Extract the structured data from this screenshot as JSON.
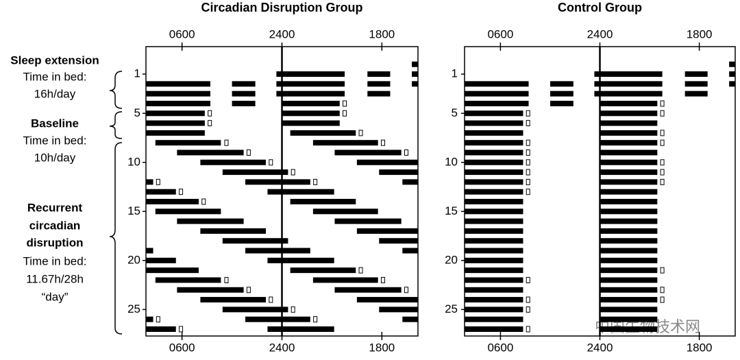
{
  "chart_data": [
    {
      "type": "actogram",
      "title": "Circadian Disruption Group",
      "xlim": [
        -0.5,
        48.5
      ],
      "xticks": [
        {
          "value": 6,
          "label": "0600"
        },
        {
          "value": 24,
          "label": "2400"
        },
        {
          "value": 42,
          "label": "1800"
        }
      ],
      "ylim": [
        -1.8,
        27.7
      ],
      "yticks": [
        1,
        5,
        10,
        15,
        20,
        25
      ],
      "annotations": [
        "Sleep extension",
        "Time in bed:",
        "16h/day",
        "Baseline",
        "Time in bed:",
        "10h/day",
        "Recurrent",
        "circadian",
        "disruption",
        "Time in bed:",
        "11.67h/28h",
        "“day”"
      ],
      "rows": [
        {
          "day": 0,
          "sleep": [
            [
              47.4,
              48.5
            ]
          ],
          "markers": []
        },
        {
          "day": 1,
          "sleep": [
            [
              23,
              35.3
            ],
            [
              39.4,
              43.5
            ],
            [
              47.4,
              48.5
            ]
          ],
          "markers": []
        },
        {
          "day": 2,
          "sleep": [
            [
              -0.5,
              11.1
            ],
            [
              15,
              19.2
            ],
            [
              23,
              35.3
            ],
            [
              39.4,
              43.5
            ],
            [
              47.4,
              48.5
            ]
          ],
          "markers": []
        },
        {
          "day": 3,
          "sleep": [
            [
              -0.5,
              11.1
            ],
            [
              15,
              19.2
            ],
            [
              23,
              35.3
            ],
            [
              39.4,
              43.5
            ]
          ],
          "markers": []
        },
        {
          "day": 4,
          "sleep": [
            [
              -0.5,
              11.1
            ],
            [
              15,
              19.2
            ],
            [
              24,
              34.4
            ]
          ],
          "markers": [
            35.3
          ]
        },
        {
          "day": 5,
          "sleep": [
            [
              -0.5,
              10.1
            ],
            [
              24,
              34.4
            ]
          ],
          "markers": [
            11.0,
            35.3
          ]
        },
        {
          "day": 6,
          "sleep": [
            [
              -0.5,
              10.1
            ],
            [
              24,
              34.4
            ]
          ],
          "markers": [
            11.0
          ]
        },
        {
          "day": 7,
          "sleep": [
            [
              -0.5,
              10.1
            ],
            [
              25.5,
              37.3
            ]
          ],
          "markers": [
            38.2
          ]
        },
        {
          "day": 8,
          "sleep": [
            [
              1.2,
              13.0
            ],
            [
              29.6,
              41.3
            ]
          ],
          "markers": [
            14.0,
            42.2
          ]
        },
        {
          "day": 9,
          "sleep": [
            [
              5.1,
              17.1
            ],
            [
              33.5,
              45.5
            ]
          ],
          "markers": [
            18.0,
            46.4
          ]
        },
        {
          "day": 10,
          "sleep": [
            [
              9.3,
              21.1
            ],
            [
              37.5,
              48.5
            ]
          ],
          "markers": [
            22.0
          ]
        },
        {
          "day": 11,
          "sleep": [
            [
              13.3,
              25.1
            ],
            [
              41.5,
              48.5
            ]
          ],
          "markers": [
            26.0
          ]
        },
        {
          "day": 12,
          "sleep": [
            [
              -0.5,
              0.8
            ],
            [
              17.4,
              29.1
            ],
            [
              45.7,
              48.5
            ]
          ],
          "markers": [
            1.7,
            30.0
          ]
        },
        {
          "day": 13,
          "sleep": [
            [
              -0.5,
              4.9
            ],
            [
              21.4,
              33.4
            ]
          ],
          "markers": [
            5.8
          ]
        },
        {
          "day": 14,
          "sleep": [
            [
              -0.5,
              9.0
            ],
            [
              25.5,
              37.3
            ]
          ],
          "markers": [
            9.9
          ]
        },
        {
          "day": 15,
          "sleep": [
            [
              1.2,
              13.0
            ],
            [
              29.6,
              41.3
            ]
          ],
          "markers": []
        },
        {
          "day": 16,
          "sleep": [
            [
              5.1,
              17.1
            ],
            [
              33.5,
              45.5
            ]
          ],
          "markers": []
        },
        {
          "day": 17,
          "sleep": [
            [
              9.3,
              21.1
            ],
            [
              37.5,
              48.5
            ]
          ],
          "markers": []
        },
        {
          "day": 18,
          "sleep": [
            [
              13.3,
              25.1
            ],
            [
              41.5,
              48.5
            ]
          ],
          "markers": []
        },
        {
          "day": 19,
          "sleep": [
            [
              -0.5,
              0.8
            ],
            [
              17.4,
              29.1
            ],
            [
              45.7,
              48.5
            ]
          ],
          "markers": []
        },
        {
          "day": 20,
          "sleep": [
            [
              -0.5,
              4.9
            ],
            [
              21.4,
              33.4
            ]
          ],
          "markers": []
        },
        {
          "day": 21,
          "sleep": [
            [
              -0.5,
              9.0
            ],
            [
              25.5,
              37.3
            ]
          ],
          "markers": [
            38.2
          ]
        },
        {
          "day": 22,
          "sleep": [
            [
              1.2,
              13.0
            ],
            [
              29.6,
              41.3
            ]
          ],
          "markers": [
            14.0,
            42.2
          ]
        },
        {
          "day": 23,
          "sleep": [
            [
              5.1,
              17.1
            ],
            [
              33.5,
              45.5
            ]
          ],
          "markers": [
            18.0,
            46.4
          ]
        },
        {
          "day": 24,
          "sleep": [
            [
              9.3,
              21.1
            ],
            [
              37.5,
              48.5
            ]
          ],
          "markers": [
            22.0
          ]
        },
        {
          "day": 25,
          "sleep": [
            [
              13.3,
              25.1
            ],
            [
              41.5,
              48.5
            ]
          ],
          "markers": [
            26.0
          ]
        },
        {
          "day": 26,
          "sleep": [
            [
              -0.5,
              0.8
            ],
            [
              17.4,
              29.1
            ],
            [
              45.7,
              48.5
            ]
          ],
          "markers": [
            1.7,
            30.0
          ]
        },
        {
          "day": 27,
          "sleep": [
            [
              -0.5,
              4.9
            ],
            [
              21.4,
              33.4
            ]
          ],
          "markers": [
            5.8
          ]
        }
      ]
    },
    {
      "type": "actogram",
      "title": "Control Group",
      "xlim": [
        -0.5,
        48.5
      ],
      "xticks": [
        {
          "value": 6,
          "label": "0600"
        },
        {
          "value": 24,
          "label": "2400"
        },
        {
          "value": 42,
          "label": "1800"
        }
      ],
      "ylim": [
        -1.8,
        27.7
      ],
      "yticks": [
        1,
        5,
        10,
        15,
        20,
        25
      ],
      "watermark": "中国生物技术网",
      "rows": [
        {
          "day": 0,
          "sleep": [
            [
              47.4,
              48.5
            ]
          ],
          "markers": []
        },
        {
          "day": 1,
          "sleep": [
            [
              23,
              35.3
            ],
            [
              39.4,
              43.5
            ],
            [
              47.4,
              48.5
            ]
          ],
          "markers": []
        },
        {
          "day": 2,
          "sleep": [
            [
              -0.5,
              11.1
            ],
            [
              15,
              19.2
            ],
            [
              23,
              35.3
            ],
            [
              39.4,
              43.5
            ],
            [
              47.4,
              48.5
            ]
          ],
          "markers": []
        },
        {
          "day": 3,
          "sleep": [
            [
              -0.5,
              11.1
            ],
            [
              15,
              19.2
            ],
            [
              23,
              35.3
            ],
            [
              39.4,
              43.5
            ]
          ],
          "markers": []
        },
        {
          "day": 4,
          "sleep": [
            [
              -0.5,
              11.1
            ],
            [
              15,
              19.2
            ],
            [
              24,
              34.4
            ]
          ],
          "markers": [
            35.3
          ]
        },
        {
          "day": 5,
          "sleep": [
            [
              -0.5,
              10.1
            ],
            [
              24,
              34.4
            ]
          ],
          "markers": [
            11.0,
            35.3
          ]
        },
        {
          "day": 6,
          "sleep": [
            [
              -0.5,
              10.1
            ],
            [
              24,
              34.4
            ]
          ],
          "markers": [
            11.0
          ]
        },
        {
          "day": 7,
          "sleep": [
            [
              -0.5,
              10.1
            ],
            [
              24,
              34.4
            ]
          ],
          "markers": [
            35.3
          ]
        },
        {
          "day": 8,
          "sleep": [
            [
              -0.5,
              10.1
            ],
            [
              24,
              34.4
            ]
          ],
          "markers": [
            11.0,
            35.3
          ]
        },
        {
          "day": 9,
          "sleep": [
            [
              -0.5,
              10.1
            ],
            [
              24,
              34.4
            ]
          ],
          "markers": [
            11.0
          ]
        },
        {
          "day": 10,
          "sleep": [
            [
              -0.5,
              10.1
            ],
            [
              24,
              34.4
            ]
          ],
          "markers": [
            11.0,
            35.3
          ]
        },
        {
          "day": 11,
          "sleep": [
            [
              -0.5,
              10.1
            ],
            [
              24,
              34.4
            ]
          ],
          "markers": [
            11.0,
            35.3
          ]
        },
        {
          "day": 12,
          "sleep": [
            [
              -0.5,
              10.1
            ],
            [
              24,
              34.4
            ]
          ],
          "markers": [
            11.0,
            35.3
          ]
        },
        {
          "day": 13,
          "sleep": [
            [
              -0.5,
              10.1
            ],
            [
              24,
              34.4
            ]
          ],
          "markers": [
            11.0
          ]
        },
        {
          "day": 14,
          "sleep": [
            [
              -0.5,
              10.1
            ],
            [
              24,
              34.4
            ]
          ],
          "markers": []
        },
        {
          "day": 15,
          "sleep": [
            [
              -0.5,
              10.1
            ],
            [
              24,
              34.4
            ]
          ],
          "markers": []
        },
        {
          "day": 16,
          "sleep": [
            [
              -0.5,
              10.1
            ],
            [
              24,
              34.4
            ]
          ],
          "markers": []
        },
        {
          "day": 17,
          "sleep": [
            [
              -0.5,
              10.1
            ],
            [
              24,
              34.4
            ]
          ],
          "markers": []
        },
        {
          "day": 18,
          "sleep": [
            [
              -0.5,
              10.1
            ],
            [
              24,
              34.4
            ]
          ],
          "markers": []
        },
        {
          "day": 19,
          "sleep": [
            [
              -0.5,
              10.1
            ],
            [
              24,
              34.4
            ]
          ],
          "markers": []
        },
        {
          "day": 20,
          "sleep": [
            [
              -0.5,
              10.1
            ],
            [
              24,
              34.4
            ]
          ],
          "markers": []
        },
        {
          "day": 21,
          "sleep": [
            [
              -0.5,
              10.1
            ],
            [
              24,
              34.4
            ]
          ],
          "markers": [
            35.3
          ]
        },
        {
          "day": 22,
          "sleep": [
            [
              -0.5,
              10.1
            ],
            [
              24,
              34.4
            ]
          ],
          "markers": [
            11.0
          ]
        },
        {
          "day": 23,
          "sleep": [
            [
              -0.5,
              10.1
            ],
            [
              24,
              34.4
            ]
          ],
          "markers": [
            35.3
          ]
        },
        {
          "day": 24,
          "sleep": [
            [
              -0.5,
              10.1
            ],
            [
              24,
              34.4
            ]
          ],
          "markers": [
            11.0,
            35.3
          ]
        },
        {
          "day": 25,
          "sleep": [
            [
              -0.5,
              10.1
            ],
            [
              24,
              34.4
            ]
          ],
          "markers": [
            11.0
          ]
        },
        {
          "day": 26,
          "sleep": [
            [
              -0.5,
              10.1
            ],
            [
              24,
              34.4
            ]
          ],
          "markers": []
        },
        {
          "day": 27,
          "sleep": [
            [
              -0.5,
              10.1
            ],
            [
              24,
              34.4
            ]
          ],
          "markers": [
            11.0
          ]
        }
      ]
    }
  ]
}
